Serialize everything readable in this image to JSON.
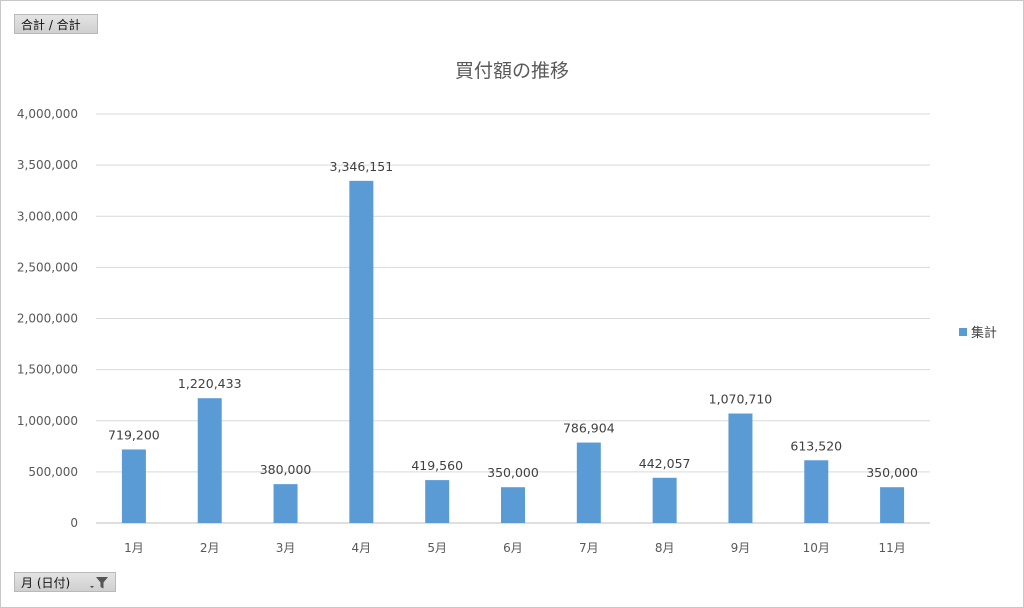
{
  "value_field_button": "合計 / 合計",
  "axis_field_button": "月 (日付)",
  "colors": {
    "bar": "#5b9bd5",
    "grid": "#d9d9d9",
    "axis": "#bfbfbf",
    "text": "#595959"
  },
  "chart_data": {
    "type": "bar",
    "title": "買付額の推移",
    "xlabel": "",
    "ylabel": "",
    "categories": [
      "1月",
      "2月",
      "3月",
      "4月",
      "5月",
      "6月",
      "7月",
      "8月",
      "9月",
      "10月",
      "11月"
    ],
    "series": [
      {
        "name": "集計",
        "values": [
          719200,
          1220433,
          380000,
          3346151,
          419560,
          350000,
          786904,
          442057,
          1070710,
          613520,
          350000
        ],
        "data_labels": [
          "719,200",
          "1,220,433",
          "380,000",
          "3,346,151",
          "419,560",
          "350,000",
          "786,904",
          "442,057",
          "1,070,710",
          "613,520",
          "350,000"
        ]
      }
    ],
    "ylim": [
      0,
      4000000
    ],
    "yticks": [
      "0",
      "500,000",
      "1,000,000",
      "1,500,000",
      "2,000,000",
      "2,500,000",
      "3,000,000",
      "3,500,000",
      "4,000,000"
    ],
    "grid": true,
    "legend": "right"
  }
}
